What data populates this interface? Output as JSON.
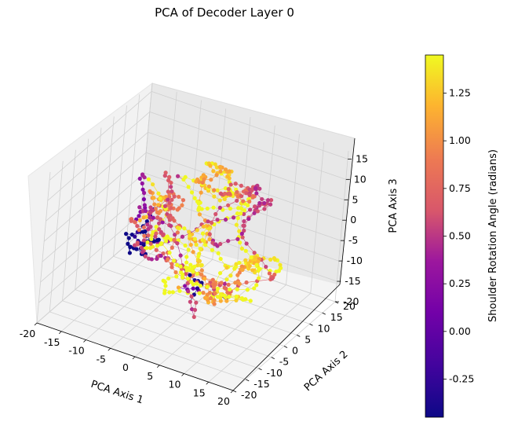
{
  "chart_data": {
    "type": "scatter",
    "title": "PCA of Decoder Layer 0",
    "axes": {
      "x": {
        "label": "PCA Axis 1",
        "ticks": [
          "-20",
          "-15",
          "-10",
          "-5",
          "0",
          "5",
          "10",
          "15",
          "20"
        ],
        "range": [
          -20,
          20
        ]
      },
      "y": {
        "label": "PCA Axis 2",
        "ticks": [
          "-20",
          "-15",
          "-10",
          "-5",
          "0",
          "5",
          "10",
          "15",
          "20"
        ],
        "range": [
          -20,
          20
        ]
      },
      "z": {
        "label": "PCA Axis 3",
        "ticks": [
          "-20",
          "-15",
          "-10",
          "-5",
          "0",
          "5",
          "10",
          "15"
        ],
        "range": [
          -20,
          17
        ]
      }
    },
    "colorbar": {
      "label": "Shoulder Rotation Angle (radians)",
      "colormap": "plasma",
      "range": [
        -0.45,
        1.45
      ],
      "ticks": [
        "-0.25",
        "0.00",
        "0.25",
        "0.50",
        "0.75",
        "1.00",
        "1.25"
      ]
    },
    "grid": true,
    "style": "3D trajectory of points connected by thin lines, colored by angle"
  }
}
